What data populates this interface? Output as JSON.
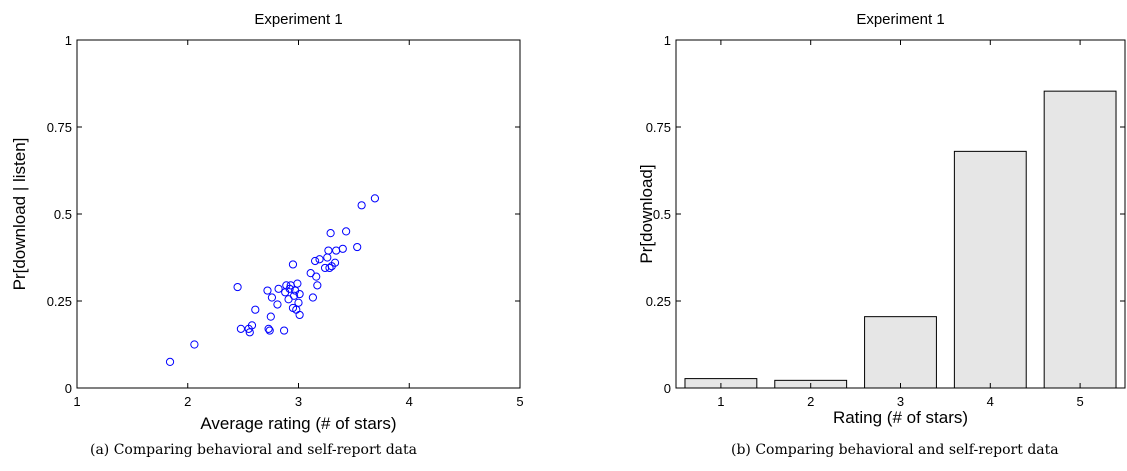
{
  "chart_data": [
    {
      "type": "scatter",
      "title": "Experiment 1",
      "xlabel": "Average rating (# of stars)",
      "ylabel": "Pr[download | listen]",
      "xlim": [
        1,
        5
      ],
      "ylim": [
        0,
        1
      ],
      "xticks": [
        "1",
        "2",
        "3",
        "4",
        "5"
      ],
      "yticks": [
        "0",
        "0.25",
        "0.5",
        "0.75",
        "1"
      ],
      "marker_color": "#0000ff",
      "points": [
        {
          "x": 1.84,
          "y": 0.075
        },
        {
          "x": 2.06,
          "y": 0.125
        },
        {
          "x": 2.45,
          "y": 0.29
        },
        {
          "x": 2.48,
          "y": 0.17
        },
        {
          "x": 2.55,
          "y": 0.17
        },
        {
          "x": 2.56,
          "y": 0.16
        },
        {
          "x": 2.58,
          "y": 0.18
        },
        {
          "x": 2.61,
          "y": 0.225
        },
        {
          "x": 2.72,
          "y": 0.28
        },
        {
          "x": 2.73,
          "y": 0.17
        },
        {
          "x": 2.74,
          "y": 0.165
        },
        {
          "x": 2.75,
          "y": 0.205
        },
        {
          "x": 2.76,
          "y": 0.26
        },
        {
          "x": 2.81,
          "y": 0.24
        },
        {
          "x": 2.82,
          "y": 0.285
        },
        {
          "x": 2.87,
          "y": 0.165
        },
        {
          "x": 2.88,
          "y": 0.275
        },
        {
          "x": 2.89,
          "y": 0.295
        },
        {
          "x": 2.91,
          "y": 0.255
        },
        {
          "x": 2.92,
          "y": 0.285
        },
        {
          "x": 2.93,
          "y": 0.295
        },
        {
          "x": 2.95,
          "y": 0.355
        },
        {
          "x": 2.95,
          "y": 0.23
        },
        {
          "x": 2.96,
          "y": 0.265
        },
        {
          "x": 2.97,
          "y": 0.28
        },
        {
          "x": 2.98,
          "y": 0.225
        },
        {
          "x": 2.99,
          "y": 0.3
        },
        {
          "x": 3.0,
          "y": 0.245
        },
        {
          "x": 3.01,
          "y": 0.27
        },
        {
          "x": 3.01,
          "y": 0.21
        },
        {
          "x": 3.11,
          "y": 0.33
        },
        {
          "x": 3.13,
          "y": 0.26
        },
        {
          "x": 3.15,
          "y": 0.365
        },
        {
          "x": 3.16,
          "y": 0.32
        },
        {
          "x": 3.17,
          "y": 0.295
        },
        {
          "x": 3.19,
          "y": 0.37
        },
        {
          "x": 3.24,
          "y": 0.345
        },
        {
          "x": 3.26,
          "y": 0.375
        },
        {
          "x": 3.27,
          "y": 0.395
        },
        {
          "x": 3.28,
          "y": 0.345
        },
        {
          "x": 3.29,
          "y": 0.445
        },
        {
          "x": 3.3,
          "y": 0.35
        },
        {
          "x": 3.33,
          "y": 0.36
        },
        {
          "x": 3.34,
          "y": 0.395
        },
        {
          "x": 3.4,
          "y": 0.4
        },
        {
          "x": 3.43,
          "y": 0.45
        },
        {
          "x": 3.53,
          "y": 0.405
        },
        {
          "x": 3.57,
          "y": 0.525
        },
        {
          "x": 3.69,
          "y": 0.545
        }
      ]
    },
    {
      "type": "bar",
      "title": "Experiment 1",
      "xlabel": "Rating (# of stars)",
      "ylabel": "Pr[download]",
      "categories": [
        "1",
        "2",
        "3",
        "4",
        "5"
      ],
      "values": [
        0.027,
        0.022,
        0.205,
        0.68,
        0.853
      ],
      "ylim": [
        0,
        1
      ],
      "yticks": [
        "0",
        "0.25",
        "0.5",
        "0.75",
        "1"
      ],
      "bar_color": "#e6e6e6"
    }
  ],
  "captions": {
    "a": "(a) Comparing behavioral and self-report data",
    "b": "(b) Comparing behavioral and self-report data"
  }
}
